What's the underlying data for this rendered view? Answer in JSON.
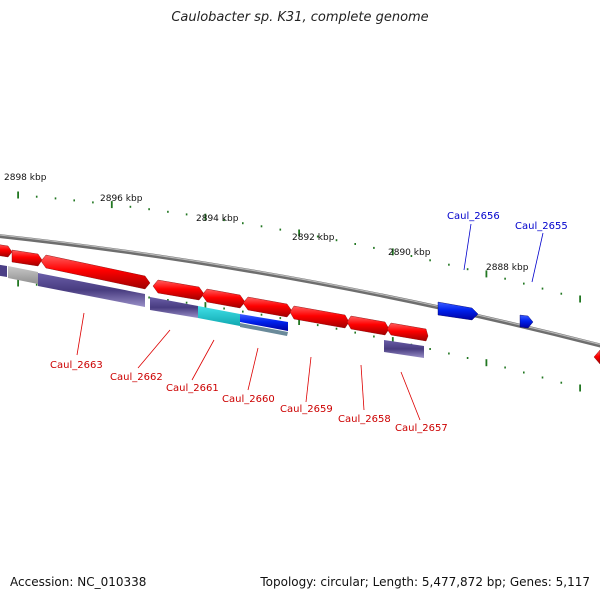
{
  "title": "Caulobacter sp. K31, complete genome",
  "footer": {
    "accession": "Accession: NC_010338",
    "summary": "Topology: circular; Length: 5,477,872 bp; Genes: 5,117"
  },
  "colors": {
    "forward_gene": "#ff0000",
    "reverse_gene": "#0000ff",
    "cog_purple": "#4b3f86",
    "cog_cyan": "#19c7d0",
    "cog_gray": "#b0b0b0",
    "backbone": "#808080",
    "tick": "#227722"
  },
  "scale_labels": [
    "2898 kbp",
    "2896 kbp",
    "2894 kbp",
    "2892 kbp",
    "2890 kbp",
    "2888 kbp"
  ],
  "gene_labels": {
    "forward": [
      "Caul_2663",
      "Caul_2662",
      "Caul_2661",
      "Caul_2660",
      "Caul_2659",
      "Caul_2658",
      "Caul_2657"
    ],
    "reverse": [
      "Caul_2656",
      "Caul_2655"
    ]
  }
}
